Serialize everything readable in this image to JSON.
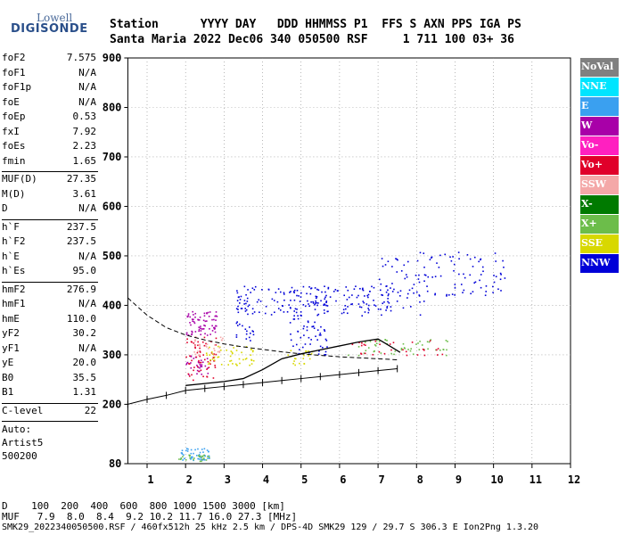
{
  "logo": {
    "line1": "Lowell",
    "line2": "DIGISONDE"
  },
  "header": {
    "line1": "Station      YYYY DAY   DDD HHMMSS P1  FFS S AXN PPS IGA PS",
    "line2": "Santa Maria 2022 Dec06 340 050500 RSF     1 711 100 03+ 36"
  },
  "params_group1": [
    {
      "k": "foF2",
      "v": "7.575"
    },
    {
      "k": "foF1",
      "v": "N/A"
    },
    {
      "k": "foF1p",
      "v": "N/A"
    },
    {
      "k": "foE",
      "v": "N/A"
    },
    {
      "k": "foEp",
      "v": "0.53"
    },
    {
      "k": "fxI",
      "v": "7.92"
    },
    {
      "k": "foEs",
      "v": "2.23"
    },
    {
      "k": "fmin",
      "v": "1.65"
    }
  ],
  "params_group2": [
    {
      "k": "MUF(D)",
      "v": "27.35"
    },
    {
      "k": "M(D)",
      "v": "3.61"
    },
    {
      "k": "D",
      "v": "N/A"
    }
  ],
  "params_group3": [
    {
      "k": "h`F",
      "v": "237.5"
    },
    {
      "k": "h`F2",
      "v": "237.5"
    },
    {
      "k": "h`E",
      "v": "N/A"
    },
    {
      "k": "h`Es",
      "v": "95.0"
    }
  ],
  "params_group4": [
    {
      "k": "hmF2",
      "v": "276.9"
    },
    {
      "k": "hmF1",
      "v": "N/A"
    },
    {
      "k": "hmE",
      "v": "110.0"
    },
    {
      "k": "yF2",
      "v": "30.2"
    },
    {
      "k": "yF1",
      "v": "N/A"
    },
    {
      "k": "yE",
      "v": "20.0"
    },
    {
      "k": "B0",
      "v": "35.5"
    },
    {
      "k": "B1",
      "v": "1.31"
    }
  ],
  "params_group5": [
    {
      "k": "C-level",
      "v": "22"
    }
  ],
  "auto": {
    "l1": "Auto:",
    "l2": "Artist5",
    "l3": "500200"
  },
  "legend": [
    {
      "label": "NoVal",
      "color": "#808080"
    },
    {
      "label": "NNE",
      "color": "#00e5ff"
    },
    {
      "label": "E",
      "color": "#3aa0f0"
    },
    {
      "label": "W",
      "color": "#a800a8"
    },
    {
      "label": "Vo-",
      "color": "#ff20c0"
    },
    {
      "label": "Vo+",
      "color": "#e0002a"
    },
    {
      "label": "SSW",
      "color": "#f4a8a8"
    },
    {
      "label": "X-",
      "color": "#007a00"
    },
    {
      "label": "X+",
      "color": "#6cbd4a"
    },
    {
      "label": "SSE",
      "color": "#d8d800"
    },
    {
      "label": "NNW",
      "color": "#0000d8"
    }
  ],
  "bottom": {
    "row1": "D    100  200  400  600  800 1000 1500 3000 [km]",
    "row2": "MUF   7.9  8.0  8.4  9.2 10.2 11.7 16.0 27.3 [MHz]",
    "footer": "SMK29_2022340050500.RSF / 460fx512h 25 kHz 2.5 km / DPS-4D SMK29 129 / 29.7 S 306.3 E Ion2Png 1.3.20"
  },
  "chart_data": {
    "type": "scatter",
    "xlim": [
      0.5,
      12
    ],
    "ylim": [
      80,
      900
    ],
    "x_ticks": [
      1,
      2,
      3,
      4,
      5,
      6,
      7,
      8,
      9,
      10,
      11,
      12
    ],
    "y_ticks": [
      80,
      200,
      300,
      400,
      500,
      600,
      700,
      800,
      900
    ],
    "grid": true,
    "fitted_trace": {
      "x": [
        2.0,
        2.5,
        3.0,
        3.5,
        4.0,
        4.5,
        5.0,
        5.5,
        6.0,
        6.5,
        7.0,
        7.3,
        7.575
      ],
      "y": [
        238,
        242,
        246,
        252,
        270,
        292,
        302,
        310,
        318,
        326,
        332,
        318,
        305
      ]
    },
    "reference_curve": {
      "x": [
        0.5,
        1,
        1.5,
        2,
        2.5,
        3,
        3.5,
        4,
        4.5,
        5,
        5.5,
        6,
        6.5,
        7,
        7.5
      ],
      "y": [
        415,
        380,
        355,
        340,
        330,
        322,
        316,
        311,
        306,
        302,
        299,
        296,
        294,
        292,
        290
      ]
    },
    "marked_curve": {
      "x": [
        0.5,
        1,
        1.5,
        2,
        2.5,
        3,
        3.5,
        4,
        4.5,
        5,
        5.5,
        6,
        6.5,
        7,
        7.5
      ],
      "y": [
        200,
        210,
        218,
        228,
        232,
        236,
        240,
        244,
        248,
        252,
        256,
        260,
        264,
        268,
        272
      ]
    },
    "echo_clusters": [
      {
        "name": "NNW",
        "color": "#0000d8",
        "x": [
          3.3,
          8.2
        ],
        "y": [
          380,
          440
        ],
        "n": 160
      },
      {
        "name": "NNW",
        "color": "#0000d8",
        "x": [
          7.0,
          10.3
        ],
        "y": [
          420,
          510
        ],
        "n": 110
      },
      {
        "name": "NNW",
        "color": "#0000d8",
        "x": [
          4.7,
          5.7
        ],
        "y": [
          300,
          440
        ],
        "n": 90
      },
      {
        "name": "NNW",
        "color": "#0000d8",
        "x": [
          3.3,
          3.8
        ],
        "y": [
          330,
          440
        ],
        "n": 40
      },
      {
        "name": "W",
        "color": "#a800a8",
        "x": [
          2.0,
          2.8
        ],
        "y": [
          340,
          390
        ],
        "n": 70
      },
      {
        "name": "W",
        "color": "#a800a8",
        "x": [
          2.0,
          2.6
        ],
        "y": [
          260,
          300
        ],
        "n": 30
      },
      {
        "name": "Vo+",
        "color": "#e0002a",
        "x": [
          2.0,
          2.8
        ],
        "y": [
          250,
          340
        ],
        "n": 60
      },
      {
        "name": "SSE",
        "color": "#d8d800",
        "x": [
          2.5,
          3.8
        ],
        "y": [
          280,
          320
        ],
        "n": 50
      },
      {
        "name": "SSW",
        "color": "#f4a8a8",
        "x": [
          2.2,
          3.0
        ],
        "y": [
          300,
          340
        ],
        "n": 30
      },
      {
        "name": "E",
        "color": "#3aa0f0",
        "x": [
          1.8,
          2.6
        ],
        "y": [
          88,
          112
        ],
        "n": 50
      },
      {
        "name": "X+",
        "color": "#6cbd4a",
        "x": [
          1.8,
          2.6
        ],
        "y": [
          86,
          100
        ],
        "n": 25
      },
      {
        "name": "X+",
        "color": "#6cbd4a",
        "x": [
          6.2,
          8.8
        ],
        "y": [
          300,
          335
        ],
        "n": 50
      },
      {
        "name": "Vo+",
        "color": "#e0002a",
        "x": [
          6.2,
          8.8
        ],
        "y": [
          300,
          330
        ],
        "n": 30
      },
      {
        "name": "SSE",
        "color": "#d8d800",
        "x": [
          4.6,
          5.3
        ],
        "y": [
          280,
          310
        ],
        "n": 20
      }
    ]
  }
}
